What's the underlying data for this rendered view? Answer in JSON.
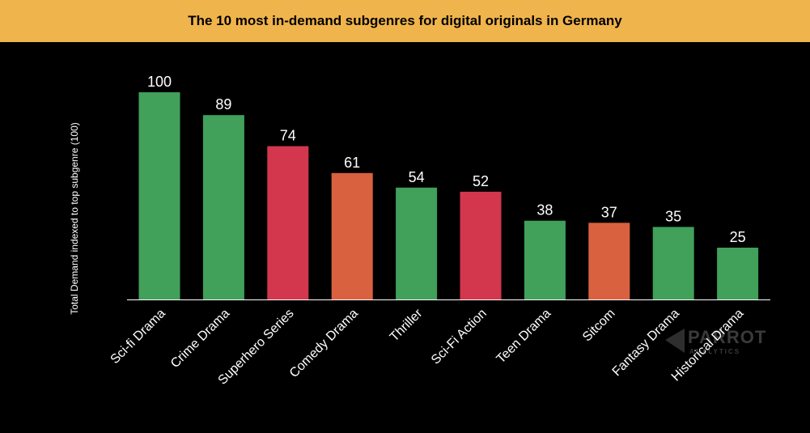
{
  "chart_data": {
    "type": "bar",
    "title": "The 10 most in-demand subgenres for digital originals in Germany",
    "xlabel": "",
    "ylabel": "Total Demand indexed to top subgenre (100)",
    "ylim": [
      0,
      100
    ],
    "grid": false,
    "categories": [
      "Sci-fi Drama",
      "Crime Drama",
      "Superhero Series",
      "Comedy Drama",
      "Thriller",
      "Sci-Fi Action",
      "Teen Drama",
      "Sitcom",
      "Fantasy Drama",
      "Historical Drama"
    ],
    "values": [
      100,
      89,
      74,
      61,
      54,
      52,
      38,
      37,
      35,
      25
    ],
    "bar_colors": [
      "#41a05a",
      "#41a05a",
      "#d2374d",
      "#d9613f",
      "#41a05a",
      "#d2374d",
      "#41a05a",
      "#d9613f",
      "#41a05a",
      "#41a05a"
    ]
  },
  "colors": {
    "title_band": "#f0b44c",
    "background": "#000000",
    "text": "#ffffff"
  },
  "watermark": {
    "brand": "PARROT",
    "sub": "ANALYTICS"
  }
}
